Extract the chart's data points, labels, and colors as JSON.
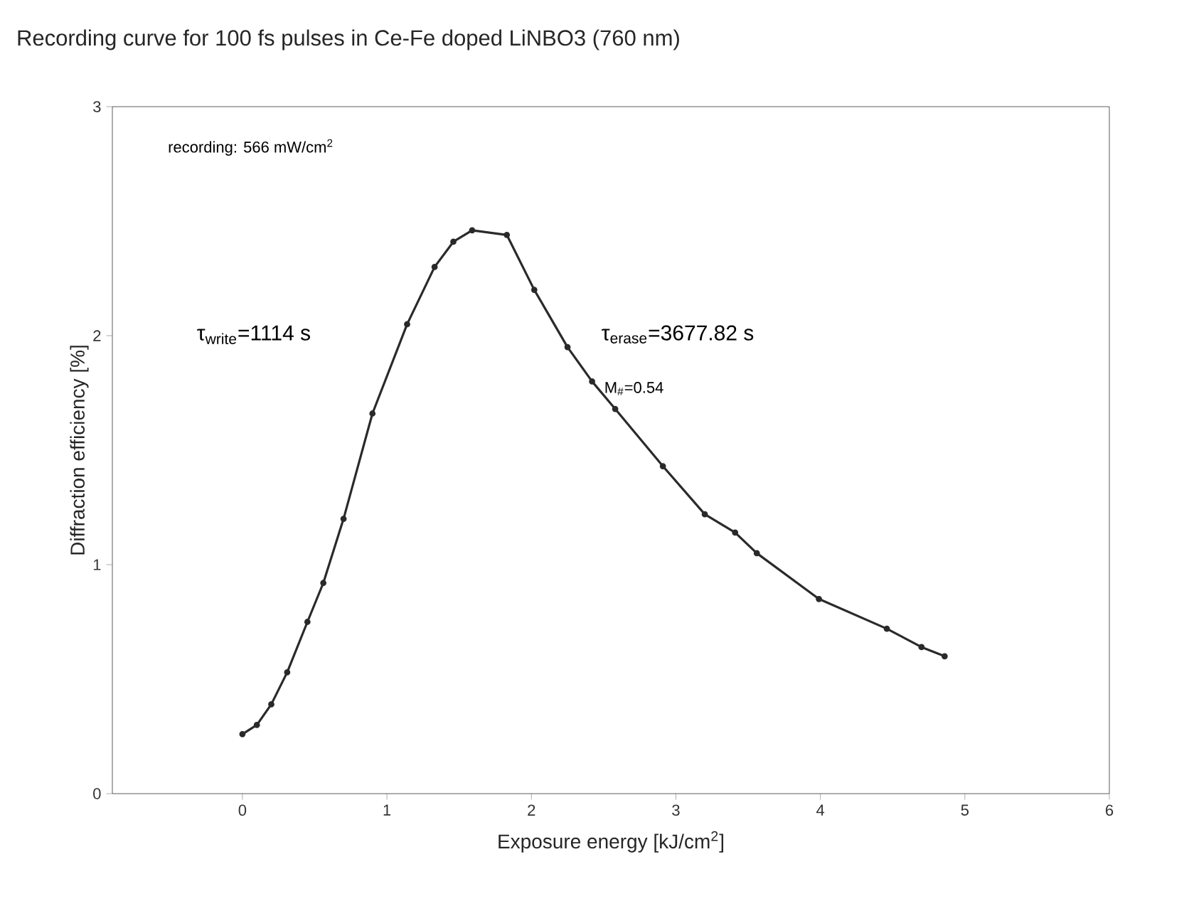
{
  "chart_data": {
    "type": "line",
    "title": "Recording curve for 100 fs pulses in Ce-Fe doped LiNBO3 (760 nm)",
    "xlabel": "Exposure energy [kJ/cm$^{2}$]",
    "ylabel": "Diffraction efficiency [%]",
    "annotations": [
      "recording: 566 mW/cm$^{2}$",
      "τ$_{write}$=1114 s",
      "τ$_{erase}$=3677.82  s",
      "M$_{#}$=0.54"
    ],
    "x": [
      0,
      0.1,
      0.2,
      0.31,
      0.45,
      0.56,
      0.7,
      0.9,
      1.14,
      1.33,
      1.46,
      1.59,
      1.83,
      2.02,
      2.25,
      2.42,
      2.58,
      2.91,
      3.2,
      3.41,
      3.56,
      3.99,
      4.46,
      4.7,
      4.86
    ],
    "values": [
      0.26,
      0.3,
      0.39,
      0.53,
      0.75,
      0.92,
      1.2,
      1.66,
      2.05,
      2.3,
      2.41,
      2.46,
      2.44,
      2.2,
      1.95,
      1.8,
      1.68,
      1.43,
      1.22,
      1.14,
      1.05,
      0.85,
      0.72,
      0.64,
      0.6
    ],
    "color": "#2a2a2a",
    "marker": "circle",
    "line_style": "solid",
    "xlim": [
      -0.9,
      6
    ],
    "ylim": [
      0,
      3
    ],
    "xticks": [
      0,
      1,
      2,
      3,
      4,
      5,
      6
    ],
    "yticks": [
      0,
      1,
      2,
      3
    ]
  }
}
